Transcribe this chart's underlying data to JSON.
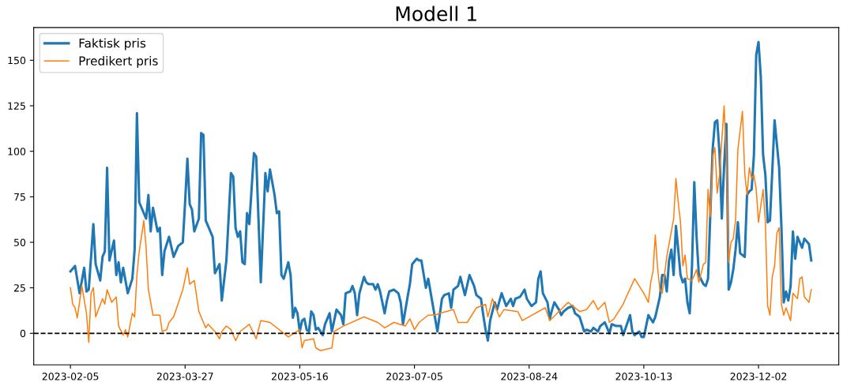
{
  "chart_data": {
    "type": "line",
    "title": "Modell 1",
    "legend": "top left",
    "grid": false,
    "xlim": [
      "2023-01-20",
      "2024-01-06"
    ],
    "ylim": [
      -17.3,
      168
    ],
    "xticks": [
      "2023-02-05",
      "2023-03-27",
      "2023-05-16",
      "2023-07-05",
      "2023-08-24",
      "2023-10-13",
      "2023-12-02"
    ],
    "yticks": [
      0,
      25,
      50,
      75,
      100,
      125,
      150
    ],
    "ref_lines": [
      {
        "axis": "y",
        "value": 0,
        "color": "#000000",
        "line_style": "dashed"
      }
    ],
    "series": [
      {
        "name": "Faktisk pris",
        "color": "#1f77b4",
        "x": [
          "2023-02-05",
          "2023-02-07",
          "2023-02-09",
          "2023-02-11",
          "2023-02-12",
          "2023-02-13",
          "2023-02-15",
          "2023-02-16",
          "2023-02-18",
          "2023-02-19",
          "2023-02-20",
          "2023-02-21",
          "2023-02-22",
          "2023-02-24",
          "2023-02-25",
          "2023-02-26",
          "2023-02-27",
          "2023-02-28",
          "2023-03-02",
          "2023-03-04",
          "2023-03-05",
          "2023-03-06",
          "2023-03-07",
          "2023-03-10",
          "2023-03-11",
          "2023-03-12",
          "2023-03-13",
          "2023-03-15",
          "2023-03-16",
          "2023-03-17",
          "2023-03-18",
          "2023-03-20",
          "2023-03-22",
          "2023-03-24",
          "2023-03-26",
          "2023-03-27",
          "2023-03-28",
          "2023-03-29",
          "2023-03-30",
          "2023-03-31",
          "2023-04-02",
          "2023-04-03",
          "2023-04-04",
          "2023-04-05",
          "2023-04-07",
          "2023-04-08",
          "2023-04-09",
          "2023-04-11",
          "2023-04-12",
          "2023-04-14",
          "2023-04-16",
          "2023-04-17",
          "2023-04-18",
          "2023-04-19",
          "2023-04-20",
          "2023-04-21",
          "2023-04-22",
          "2023-04-23",
          "2023-04-24",
          "2023-04-26",
          "2023-04-27",
          "2023-04-29",
          "2023-05-01",
          "2023-05-02",
          "2023-05-03",
          "2023-05-05",
          "2023-05-06",
          "2023-05-07",
          "2023-05-08",
          "2023-05-09",
          "2023-05-11",
          "2023-05-12",
          "2023-05-13",
          "2023-05-14",
          "2023-05-15",
          "2023-05-16",
          "2023-05-17",
          "2023-05-18",
          "2023-05-19",
          "2023-05-20",
          "2023-05-21",
          "2023-05-22",
          "2023-05-23",
          "2023-05-24",
          "2023-05-26",
          "2023-05-27",
          "2023-05-29",
          "2023-05-30",
          "2023-06-01",
          "2023-06-03",
          "2023-06-04",
          "2023-06-05",
          "2023-06-07",
          "2023-06-08",
          "2023-06-09",
          "2023-06-10",
          "2023-06-11",
          "2023-06-13",
          "2023-06-14",
          "2023-06-15",
          "2023-06-17",
          "2023-06-18",
          "2023-06-19",
          "2023-06-20",
          "2023-06-22",
          "2023-06-23",
          "2023-06-24",
          "2023-06-26",
          "2023-06-28",
          "2023-06-29",
          "2023-06-30",
          "2023-07-02",
          "2023-07-03",
          "2023-07-04",
          "2023-07-06",
          "2023-07-07",
          "2023-07-08",
          "2023-07-10",
          "2023-07-11",
          "2023-07-15",
          "2023-07-17",
          "2023-07-18",
          "2023-07-20",
          "2023-07-21",
          "2023-07-22",
          "2023-07-24",
          "2023-07-25",
          "2023-07-27",
          "2023-07-29",
          "2023-07-31",
          "2023-08-01",
          "2023-08-03",
          "2023-08-04",
          "2023-08-05",
          "2023-08-06",
          "2023-08-07",
          "2023-08-09",
          "2023-08-10",
          "2023-08-12",
          "2023-08-14",
          "2023-08-16",
          "2023-08-17",
          "2023-08-18",
          "2023-08-20",
          "2023-08-22",
          "2023-08-23",
          "2023-08-25",
          "2023-08-27",
          "2023-08-28",
          "2023-08-29",
          "2023-08-30",
          "2023-09-01",
          "2023-09-02",
          "2023-09-03",
          "2023-09-04",
          "2023-09-06",
          "2023-09-07",
          "2023-09-08",
          "2023-09-10",
          "2023-09-12",
          "2023-09-13",
          "2023-09-15",
          "2023-09-17",
          "2023-09-18",
          "2023-09-20",
          "2023-09-21",
          "2023-09-23",
          "2023-09-24",
          "2023-09-26",
          "2023-09-28",
          "2023-09-29",
          "2023-10-01",
          "2023-10-03",
          "2023-10-04",
          "2023-10-07",
          "2023-10-08",
          "2023-10-09",
          "2023-10-11",
          "2023-10-12",
          "2023-10-13",
          "2023-10-14",
          "2023-10-15",
          "2023-10-17",
          "2023-10-18",
          "2023-10-20",
          "2023-10-21",
          "2023-10-22",
          "2023-10-23",
          "2023-10-24",
          "2023-10-25",
          "2023-10-26",
          "2023-10-27",
          "2023-10-28",
          "2023-10-29",
          "2023-10-30",
          "2023-10-31",
          "2023-11-01",
          "2023-11-02",
          "2023-11-03",
          "2023-11-04",
          "2023-11-05",
          "2023-11-06",
          "2023-11-08",
          "2023-11-09",
          "2023-11-10",
          "2023-11-11",
          "2023-11-12",
          "2023-11-13",
          "2023-11-14",
          "2023-11-15",
          "2023-11-16",
          "2023-11-17",
          "2023-11-18",
          "2023-11-19",
          "2023-11-20",
          "2023-11-21",
          "2023-11-22",
          "2023-11-23",
          "2023-11-24",
          "2023-11-26",
          "2023-11-27",
          "2023-11-28",
          "2023-11-29",
          "2023-11-30",
          "2023-12-01",
          "2023-12-02",
          "2023-12-03",
          "2023-12-04",
          "2023-12-05",
          "2023-12-06",
          "2023-12-07",
          "2023-12-08",
          "2023-12-09",
          "2023-12-11",
          "2023-12-12",
          "2023-12-13",
          "2023-12-14",
          "2023-12-15",
          "2023-12-16",
          "2023-12-17",
          "2023-12-18",
          "2023-12-19",
          "2023-12-21",
          "2023-12-22",
          "2023-12-24",
          "2023-12-25"
        ],
        "values": [
          34,
          37,
          22,
          36,
          23,
          24,
          60,
          38,
          29,
          42,
          45,
          91,
          40,
          51,
          32,
          39,
          28,
          36,
          22,
          30,
          46,
          121,
          72,
          63,
          76,
          56,
          69,
          56,
          58,
          32,
          45,
          53,
          42,
          48,
          50,
          72,
          96,
          71,
          68,
          56,
          63,
          110,
          109,
          62,
          56,
          53,
          33,
          38,
          18,
          40,
          88,
          86,
          58,
          53,
          56,
          39,
          38,
          66,
          60,
          99,
          97,
          28,
          88,
          78,
          90,
          76,
          66,
          67,
          32,
          30,
          39,
          32,
          8.5,
          14,
          11,
          1,
          7,
          8,
          2,
          1,
          12,
          10,
          2,
          3,
          -1,
          5,
          11,
          1,
          13,
          10,
          5,
          22,
          23,
          26,
          22,
          10,
          22,
          31,
          28,
          27,
          27,
          24,
          27,
          23,
          11,
          18,
          23,
          24,
          22,
          17,
          5,
          20,
          27,
          38,
          41,
          40,
          40,
          25,
          30,
          1,
          19,
          21,
          22,
          14,
          24,
          26,
          31,
          21,
          32,
          26,
          21,
          19,
          10,
          2,
          -4,
          7,
          17,
          13,
          22,
          15,
          19,
          15,
          19,
          20,
          24,
          19,
          15,
          17,
          30,
          34,
          22,
          17,
          8,
          13,
          17,
          13,
          10,
          12,
          14,
          15,
          11,
          9,
          1,
          2,
          1,
          3,
          1,
          4,
          6,
          0,
          5,
          4,
          4,
          -1,
          10,
          1,
          -1,
          1,
          -2,
          -2,
          4,
          10,
          6,
          9,
          20,
          32,
          32,
          23,
          40,
          46,
          32,
          59,
          46,
          32,
          28,
          30,
          17,
          11,
          37,
          83,
          53,
          32,
          27,
          26,
          30,
          66,
          101,
          116,
          117,
          99,
          63,
          92,
          115,
          24,
          28,
          35,
          46,
          61,
          44,
          42,
          76,
          78,
          79,
          98,
          153,
          160,
          141,
          98,
          87,
          61,
          62,
          89,
          117,
          91,
          58,
          17,
          23,
          18,
          26,
          56,
          41,
          53,
          47,
          52,
          49,
          40
        ]
      },
      {
        "name": "Predikert pris",
        "color": "#ff7f0e",
        "x": [
          "2023-02-05",
          "2023-02-06",
          "2023-02-07",
          "2023-02-08",
          "2023-02-10",
          "2023-02-12",
          "2023-02-13",
          "2023-02-14",
          "2023-02-15",
          "2023-02-16",
          "2023-02-19",
          "2023-02-20",
          "2023-02-21",
          "2023-02-23",
          "2023-02-25",
          "2023-02-26",
          "2023-02-28",
          "2023-03-01",
          "2023-03-02",
          "2023-03-04",
          "2023-03-05",
          "2023-03-06",
          "2023-03-07",
          "2023-03-09",
          "2023-03-10",
          "2023-03-11",
          "2023-03-13",
          "2023-03-16",
          "2023-03-17",
          "2023-03-19",
          "2023-03-20",
          "2023-03-22",
          "2023-03-26",
          "2023-03-28",
          "2023-03-29",
          "2023-03-31",
          "2023-04-02",
          "2023-04-04",
          "2023-04-05",
          "2023-04-06",
          "2023-04-09",
          "2023-04-11",
          "2023-04-12",
          "2023-04-14",
          "2023-04-16",
          "2023-04-18",
          "2023-04-20",
          "2023-04-24",
          "2023-04-27",
          "2023-04-29",
          "2023-05-03",
          "2023-05-11",
          "2023-05-16",
          "2023-05-17",
          "2023-05-18",
          "2023-05-22",
          "2023-05-23",
          "2023-05-25",
          "2023-05-30",
          "2023-05-31",
          "2023-06-04",
          "2023-06-13",
          "2023-06-19",
          "2023-06-22",
          "2023-06-26",
          "2023-07-01",
          "2023-07-03",
          "2023-07-05",
          "2023-07-07",
          "2023-07-11",
          "2023-07-14",
          "2023-07-16",
          "2023-07-22",
          "2023-07-24",
          "2023-07-28",
          "2023-08-01",
          "2023-08-05",
          "2023-08-06",
          "2023-08-08",
          "2023-08-11",
          "2023-08-13",
          "2023-08-19",
          "2023-08-21",
          "2023-08-31",
          "2023-09-02",
          "2023-09-10",
          "2023-09-15",
          "2023-09-18",
          "2023-09-21",
          "2023-09-23",
          "2023-09-26",
          "2023-09-28",
          "2023-09-30",
          "2023-10-04",
          "2023-10-05",
          "2023-10-09",
          "2023-10-13",
          "2023-10-15",
          "2023-10-16",
          "2023-10-17",
          "2023-10-18",
          "2023-10-19",
          "2023-10-20",
          "2023-10-21",
          "2023-10-23",
          "2023-10-26",
          "2023-10-27",
          "2023-10-28",
          "2023-10-29",
          "2023-10-30",
          "2023-10-31",
          "2023-11-01",
          "2023-11-03",
          "2023-11-05",
          "2023-11-06",
          "2023-11-08",
          "2023-11-09",
          "2023-11-10",
          "2023-11-11",
          "2023-11-12",
          "2023-11-13",
          "2023-11-14",
          "2023-11-15",
          "2023-11-17",
          "2023-11-18",
          "2023-11-19",
          "2023-11-20",
          "2023-11-21",
          "2023-11-22",
          "2023-11-23",
          "2023-11-25",
          "2023-11-26",
          "2023-11-27",
          "2023-11-28",
          "2023-11-29",
          "2023-11-30",
          "2023-12-01",
          "2023-12-02",
          "2023-12-04",
          "2023-12-05",
          "2023-12-06",
          "2023-12-07",
          "2023-12-08",
          "2023-12-09",
          "2023-12-10",
          "2023-12-11",
          "2023-12-12",
          "2023-12-13",
          "2023-12-14",
          "2023-12-16",
          "2023-12-17",
          "2023-12-19",
          "2023-12-20",
          "2023-12-21",
          "2023-12-22",
          "2023-12-24",
          "2023-12-25"
        ],
        "values": [
          25,
          16,
          14,
          8.5,
          26,
          11,
          -5,
          22,
          25,
          9,
          19,
          16,
          24,
          17,
          20,
          4,
          -1,
          2,
          -2,
          11,
          9,
          32,
          45,
          62,
          47,
          24,
          10,
          10,
          1,
          2,
          6,
          9,
          24,
          36,
          27,
          29,
          12,
          6,
          3,
          5,
          1,
          -3,
          1,
          4,
          2,
          -4,
          1,
          5,
          -3,
          7,
          6,
          -2,
          2,
          -8,
          -4,
          -3,
          -8,
          -9.5,
          -8,
          1,
          4,
          9,
          6,
          3,
          6,
          4,
          8,
          2,
          6,
          10,
          10,
          11,
          13,
          6,
          6,
          14,
          16,
          9,
          19,
          9,
          13,
          12,
          7,
          14,
          7,
          17,
          12,
          13,
          18,
          13,
          17,
          6,
          8,
          16,
          19,
          30,
          22,
          17,
          28,
          34,
          54,
          36,
          24,
          22,
          42,
          63,
          85,
          72,
          61,
          37,
          43,
          30,
          29,
          35,
          28,
          38,
          39,
          79,
          64,
          97,
          102,
          77,
          87,
          125,
          97,
          39,
          50,
          52,
          62,
          101,
          122,
          88,
          76,
          91,
          85,
          87,
          79,
          61,
          79,
          61,
          15,
          10,
          31,
          37,
          55,
          58,
          16,
          10,
          14,
          7,
          22,
          19,
          30,
          31,
          20,
          17,
          24
        ]
      }
    ]
  }
}
